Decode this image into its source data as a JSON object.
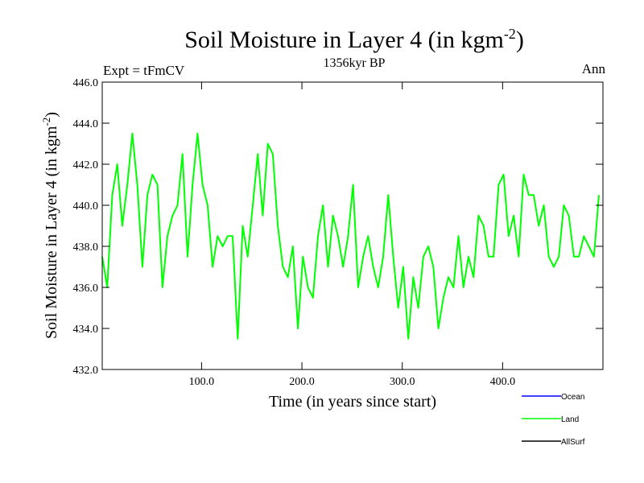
{
  "chart_data": {
    "type": "line",
    "title": "Soil Moisture in Layer 4 (in kgm",
    "title_superscript": "-2",
    "title_suffix": ")",
    "subtitle": "1356kyr BP",
    "top_left_label": "Expt = tFmCV",
    "top_right_label": "Ann",
    "xlabel": "Time (in years since start)",
    "ylabel": "Soil Moisture in Layer 4 (in kgm",
    "ylabel_superscript": "-2",
    "ylabel_suffix": ")",
    "xlim": [
      1,
      500
    ],
    "ylim": [
      432.0,
      446.0
    ],
    "x_ticks": [
      100,
      200,
      300,
      400
    ],
    "x_tick_labels": [
      "100.0",
      "200.0",
      "300.0",
      "400.0"
    ],
    "y_ticks": [
      432,
      434,
      436,
      438,
      440,
      442,
      444,
      446
    ],
    "y_tick_labels": [
      "432.0",
      "434.0",
      "436.0",
      "438.0",
      "440.0",
      "442.0",
      "444.0",
      "446.0"
    ],
    "legend": [
      {
        "name": "Ocean",
        "color": "#0000ff"
      },
      {
        "name": "Land",
        "color": "#00ff00"
      },
      {
        "name": "AllSurf",
        "color": "#000000"
      }
    ],
    "series": [
      {
        "name": "Land",
        "color": "#00ff00",
        "x_start": 1,
        "x_step": 5,
        "values": [
          437.5,
          436.0,
          440.5,
          442.0,
          439.0,
          441.0,
          443.5,
          441.0,
          437.0,
          440.5,
          441.5,
          441.0,
          436.0,
          438.5,
          439.5,
          440.0,
          442.5,
          437.5,
          441.0,
          443.5,
          441.0,
          440.0,
          437.0,
          438.5,
          438.0,
          438.5,
          438.5,
          433.5,
          439.0,
          437.5,
          440.0,
          442.5,
          439.5,
          443.0,
          442.5,
          439.0,
          437.0,
          436.5,
          438.0,
          434.0,
          437.5,
          436.0,
          435.5,
          438.5,
          440.0,
          437.0,
          439.5,
          438.5,
          437.0,
          438.5,
          441.0,
          436.0,
          437.5,
          438.5,
          437.0,
          436.0,
          437.5,
          440.5,
          437.5,
          435.0,
          437.0,
          433.5,
          436.5,
          435.0,
          437.5,
          438.0,
          437.0,
          434.0,
          435.5,
          436.5,
          436.0,
          438.5,
          436.0,
          437.5,
          436.5,
          439.5,
          439.0,
          437.5,
          437.5,
          441.0,
          441.5,
          438.5,
          439.5,
          437.5,
          441.5,
          440.5,
          440.5,
          439.0,
          440.0,
          437.5,
          437.0,
          437.5,
          440.0,
          439.5,
          437.5,
          437.5,
          438.5,
          438.0,
          437.5,
          440.5
        ]
      }
    ]
  }
}
